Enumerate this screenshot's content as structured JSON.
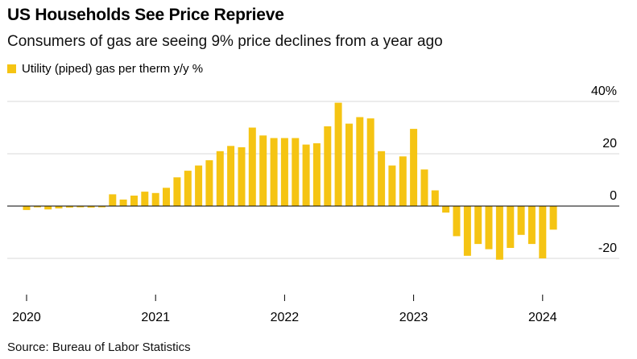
{
  "title": "US Households See Price Reprieve",
  "subtitle": "Consumers of gas are seeing 9% price declines from a year ago",
  "source": "Source: Bureau of Labor Statistics",
  "colors": {
    "bar": "#f5c413",
    "grid": "#d9d9d9",
    "zero": "#000000"
  },
  "chart_data": {
    "type": "bar",
    "title": "US Households See Price Reprieve",
    "subtitle": "Consumers of gas are seeing 9% price declines from a year ago",
    "legend": {
      "placement": "top-left",
      "entries": [
        "Utility (piped) gas per therm y/y %"
      ]
    },
    "series": [
      {
        "name": "Utility (piped) gas per therm y/y %",
        "x": [
          "2020-01",
          "2020-02",
          "2020-03",
          "2020-04",
          "2020-05",
          "2020-06",
          "2020-07",
          "2020-08",
          "2020-09",
          "2020-10",
          "2020-11",
          "2020-12",
          "2021-01",
          "2021-02",
          "2021-03",
          "2021-04",
          "2021-05",
          "2021-06",
          "2021-07",
          "2021-08",
          "2021-09",
          "2021-10",
          "2021-11",
          "2021-12",
          "2022-01",
          "2022-02",
          "2022-03",
          "2022-04",
          "2022-05",
          "2022-06",
          "2022-07",
          "2022-08",
          "2022-09",
          "2022-10",
          "2022-11",
          "2022-12",
          "2023-01",
          "2023-02",
          "2023-03",
          "2023-04",
          "2023-05",
          "2023-06",
          "2023-07",
          "2023-08",
          "2023-09",
          "2023-10",
          "2023-11",
          "2023-12",
          "2024-01",
          "2024-02"
        ],
        "values": [
          -1.5,
          -0.5,
          -1.3,
          -0.9,
          -0.6,
          -0.5,
          -0.6,
          -0.5,
          4.5,
          2.5,
          4.0,
          5.5,
          5.0,
          7.0,
          11.0,
          13.5,
          15.5,
          17.5,
          21.0,
          23.0,
          22.5,
          30.0,
          27.0,
          26.0,
          26.0,
          26.0,
          23.5,
          24.0,
          30.5,
          39.5,
          31.5,
          34.0,
          33.5,
          21.0,
          15.5,
          19.0,
          29.5,
          14.0,
          6.0,
          -2.5,
          -11.5,
          -19.0,
          -14.5,
          -16.5,
          -20.5,
          -16.0,
          -11.0,
          -14.5,
          -20.0,
          -9.0
        ]
      }
    ],
    "x_ticks": [
      "2020",
      "2021",
      "2022",
      "2023",
      "2024"
    ],
    "y_ticks": [
      40,
      20,
      0,
      -20
    ],
    "y_tick_labels": [
      "40%",
      "20",
      "0",
      "-20"
    ],
    "ylim": [
      -30,
      40
    ],
    "y_axis_position": "right",
    "grid": "horizontal"
  }
}
